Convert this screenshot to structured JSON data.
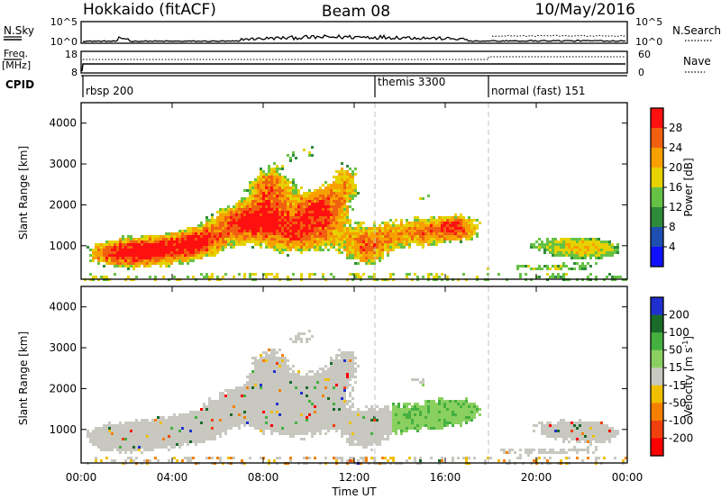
{
  "header": {
    "radar": "Hokkaido (fitACF)",
    "beam": "Beam 08",
    "date": "10/May/2016"
  },
  "chart_data": [
    {
      "type": "line",
      "name": "n-sky-panel",
      "left_label": "N.Sky",
      "right_label": "N.Search",
      "left_ticks": [
        "10^5",
        "10^0"
      ],
      "right_ticks": [
        "10^5",
        "10^0"
      ]
    },
    {
      "type": "line",
      "name": "freq-panel",
      "left_label_top": "Freq.",
      "left_label_bottom": "[MHz]",
      "right_label": "Nave",
      "left_ticks": [
        "18",
        "8"
      ],
      "right_ticks": [
        "60",
        "0"
      ]
    },
    {
      "type": "table",
      "name": "cpid-strip",
      "label": "CPID",
      "segments": [
        {
          "name": "rbsp 200",
          "start_hour": 0,
          "end_hour": 13.0
        },
        {
          "name": "themis 3300",
          "start_hour": 13.0,
          "end_hour": 18.0
        },
        {
          "name": "normal (fast) 151",
          "start_hour": 18.0,
          "end_hour": 24
        }
      ]
    },
    {
      "type": "heatmap",
      "name": "power",
      "ylabel": "Slant Range [km]",
      "ylim": [
        180,
        4500
      ],
      "y_ticks": [
        1000,
        2000,
        3000,
        4000
      ],
      "colorbar_label": "Power [dB]",
      "colorbar_ticks": [
        4,
        8,
        12,
        16,
        20,
        24,
        28
      ],
      "colorbar_range": [
        0,
        32
      ],
      "colorbar_colors": [
        "#1010ff",
        "#1e4fb0",
        "#2e8b3a",
        "#66c244",
        "#e6d200",
        "#f7a000",
        "#f06010",
        "#ff1010"
      ]
    },
    {
      "type": "heatmap",
      "name": "velocity",
      "ylabel": "Slant Range [km]",
      "ylim": [
        180,
        4500
      ],
      "y_ticks": [
        1000,
        2000,
        3000,
        4000
      ],
      "xlabel": "Time UT",
      "x_ticks": [
        "00:00",
        "04:00",
        "08:00",
        "12:00",
        "16:00",
        "20:00",
        "00:00"
      ],
      "colorbar_label": "Velocity [m s",
      "colorbar_label_sup": "-1",
      "colorbar_label_end": "]",
      "colorbar_ticks": [
        200,
        100,
        50,
        15,
        -15,
        -50,
        -100,
        -200
      ],
      "colorbar_colors": [
        "#2030d0",
        "#1a6a2a",
        "#44b040",
        "#8ad060",
        "#c8c8c0",
        "#f0c000",
        "#f58000",
        "#f04010",
        "#ff0000"
      ]
    }
  ]
}
